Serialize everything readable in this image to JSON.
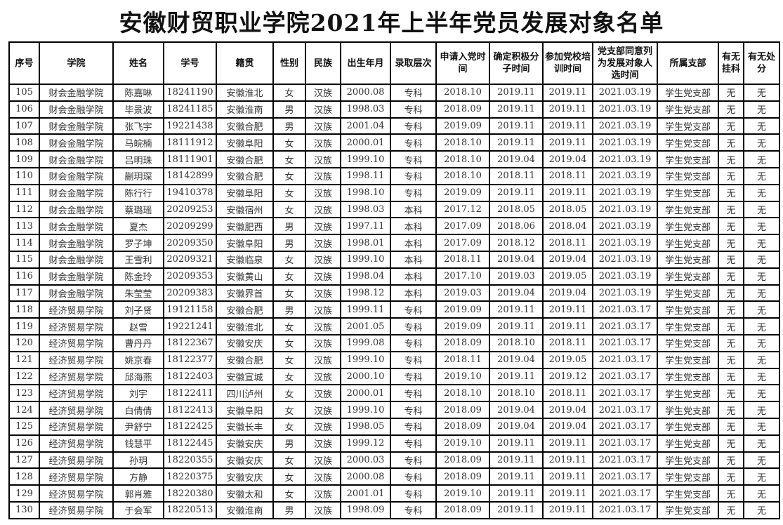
{
  "title": "安徽财贸职业学院2021年上半年党员发展对象名单",
  "table": {
    "headers": [
      "序号",
      "学院",
      "姓名",
      "学号",
      "籍贯",
      "性别",
      "民族",
      "出生年月",
      "录取层次",
      "申请入党时间",
      "确定积极分子时间",
      "参加党校培训时间",
      "党支部同意列为发展对象人选时间",
      "所属支部",
      "有无挂科",
      "有无处分"
    ],
    "rows": [
      [
        "105",
        "财会金融学院",
        "陈嘉啉",
        "18241190",
        "安徽淮北",
        "女",
        "汉族",
        "2000.08",
        "专科",
        "2018.10",
        "2019.11",
        "2019.11",
        "2021.03.19",
        "学生党支部",
        "无",
        "无"
      ],
      [
        "106",
        "财会金融学院",
        "毕景波",
        "18241185",
        "安徽淮南",
        "男",
        "汉族",
        "1998.03",
        "专科",
        "2018.09",
        "2019.11",
        "2019.11",
        "2021.03.19",
        "学生党支部",
        "无",
        "无"
      ],
      [
        "107",
        "财会金融学院",
        "张飞宇",
        "19221438",
        "安徽合肥",
        "男",
        "汉族",
        "2001.04",
        "专科",
        "2019.09",
        "2019.11",
        "2019.11",
        "2021.03.19",
        "学生党支部",
        "无",
        "无"
      ],
      [
        "108",
        "财会金融学院",
        "马皖楠",
        "18111912",
        "安徽阜阳",
        "女",
        "汉族",
        "2000.01",
        "专科",
        "2018.10",
        "2019.11",
        "2019.11",
        "2021.03.19",
        "学生党支部",
        "无",
        "无"
      ],
      [
        "109",
        "财会金融学院",
        "吕明珠",
        "18111901",
        "安徽合肥",
        "女",
        "汉族",
        "1999.10",
        "专科",
        "2018.10",
        "2019.04",
        "2019.04",
        "2021.03.19",
        "学生党支部",
        "无",
        "无"
      ],
      [
        "110",
        "财会金融学院",
        "蒯玥琛",
        "18142899",
        "安徽合肥",
        "女",
        "汉族",
        "1998.11",
        "专科",
        "2018.10",
        "2018.11",
        "2018.11",
        "2021.03.19",
        "学生党支部",
        "无",
        "无"
      ],
      [
        "111",
        "财会金融学院",
        "陈行行",
        "19410378",
        "安徽阜阳",
        "女",
        "汉族",
        "1998.10",
        "专科",
        "2019.09",
        "2019.11",
        "2019.11",
        "2021.03.19",
        "学生党支部",
        "无",
        "无"
      ],
      [
        "112",
        "财会金融学院",
        "蔡璐瑶",
        "20209253",
        "安徽宿州",
        "女",
        "汉族",
        "1998.03",
        "本科",
        "2017.12",
        "2018.05",
        "2018.05",
        "2021.03.19",
        "学生党支部",
        "无",
        "无"
      ],
      [
        "113",
        "财会金融学院",
        "夏杰",
        "20209299",
        "安徽肥西",
        "男",
        "汉族",
        "1997.11",
        "本科",
        "2017.09",
        "2018.06",
        "2018.04",
        "2021.03.19",
        "学生党支部",
        "无",
        "无"
      ],
      [
        "114",
        "财会金融学院",
        "罗子坤",
        "20209350",
        "安徽阜阳",
        "男",
        "汉族",
        "1998.01",
        "本科",
        "2017.09",
        "2018.12",
        "2018.11",
        "2021.03.19",
        "学生党支部",
        "无",
        "无"
      ],
      [
        "115",
        "财会金融学院",
        "王雪利",
        "20209321",
        "安徽临泉",
        "女",
        "汉族",
        "1999.10",
        "本科",
        "2018.11",
        "2019.04",
        "2019.04",
        "2021.03.19",
        "学生党支部",
        "无",
        "无"
      ],
      [
        "116",
        "财会金融学院",
        "陈金玲",
        "20209353",
        "安徽黄山",
        "女",
        "汉族",
        "1998.04",
        "本科",
        "2017.10",
        "2019.03",
        "2019.05",
        "2021.03.19",
        "学生党支部",
        "无",
        "无"
      ],
      [
        "117",
        "财会金融学院",
        "朱莹莹",
        "20209383",
        "安徽界首",
        "女",
        "汉族",
        "1998.12",
        "本科",
        "2019.03",
        "2019.04",
        "2019.04",
        "2021.03.19",
        "学生党支部",
        "无",
        "无"
      ],
      [
        "118",
        "经济贸易学院",
        "刘子贤",
        "19121158",
        "安徽合肥",
        "男",
        "汉族",
        "1999.11",
        "专科",
        "2019.09",
        "2019.11",
        "2019.11",
        "2021.03.17",
        "学生党支部",
        "无",
        "无"
      ],
      [
        "119",
        "经济贸易学院",
        "赵雪",
        "19221241",
        "安徽淮北",
        "女",
        "汉族",
        "2001.05",
        "专科",
        "2019.09",
        "2019.11",
        "2019.11",
        "2021.03.17",
        "学生党支部",
        "无",
        "无"
      ],
      [
        "120",
        "经济贸易学院",
        "曹丹丹",
        "18122367",
        "安徽安庆",
        "女",
        "汉族",
        "1999.08",
        "专科",
        "2018.09",
        "2018.10",
        "2018.11",
        "2021.03.17",
        "学生党支部",
        "无",
        "无"
      ],
      [
        "121",
        "经济贸易学院",
        "姚京春",
        "18122377",
        "安徽合肥",
        "女",
        "汉族",
        "1999.10",
        "专科",
        "2018.11",
        "2019.04",
        "2019.05",
        "2021.03.17",
        "学生党支部",
        "无",
        "无"
      ],
      [
        "122",
        "经济贸易学院",
        "邱海燕",
        "18122403",
        "安徽宣城",
        "女",
        "汉族",
        "2000.10",
        "专科",
        "2019.10",
        "2019.11",
        "2019.12",
        "2021.03.17",
        "学生党支部",
        "无",
        "无"
      ],
      [
        "123",
        "经济贸易学院",
        "刘宇",
        "18122411",
        "四川泸州",
        "女",
        "汉族",
        "2000.01",
        "专科",
        "2018.10",
        "2018.10",
        "2018.11",
        "2021.03.17",
        "学生党支部",
        "无",
        "无"
      ],
      [
        "124",
        "经济贸易学院",
        "白倩倩",
        "18122413",
        "安徽阜阳",
        "女",
        "汉族",
        "1999.10",
        "专科",
        "2018.09",
        "2019.04",
        "2019.04",
        "2021.03.17",
        "学生党支部",
        "无",
        "无"
      ],
      [
        "125",
        "经济贸易学院",
        "尹舒宁",
        "18122425",
        "安徽长丰",
        "女",
        "汉族",
        "1998.05",
        "专科",
        "2018.09",
        "2019.04",
        "2019.04",
        "2021.03.17",
        "学生党支部",
        "无",
        "无"
      ],
      [
        "126",
        "经济贸易学院",
        "钱慧平",
        "18122445",
        "安徽安庆",
        "男",
        "汉族",
        "1999.12",
        "专科",
        "2019.10",
        "2019.11",
        "2019.11",
        "2021.03.17",
        "学生党支部",
        "无",
        "无"
      ],
      [
        "127",
        "经济贸易学院",
        "孙玥",
        "18220355",
        "安徽安庆",
        "女",
        "汉族",
        "2000.03",
        "专科",
        "2018.09",
        "2019.11",
        "2019.11",
        "2021.03.17",
        "学生党支部",
        "无",
        "无"
      ],
      [
        "128",
        "经济贸易学院",
        "方静",
        "18220375",
        "安徽安庆",
        "女",
        "汉族",
        "2000.08",
        "专科",
        "2018.09",
        "2019.11",
        "2019.11",
        "2021.03.17",
        "学生党支部",
        "无",
        "无"
      ],
      [
        "129",
        "经济贸易学院",
        "郭肖雅",
        "18220380",
        "安徽太和",
        "女",
        "汉族",
        "2001.01",
        "专科",
        "2019.10",
        "2019.11",
        "2019.11",
        "2021.03.17",
        "学生党支部",
        "无",
        "无"
      ],
      [
        "130",
        "经济贸易学院",
        "于会军",
        "18220513",
        "安徽淮南",
        "男",
        "汉族",
        "1998.09",
        "专科",
        "2018.09",
        "2019.11",
        "2019.11",
        "2021.03.17",
        "学生党支部",
        "无",
        "无"
      ]
    ]
  }
}
